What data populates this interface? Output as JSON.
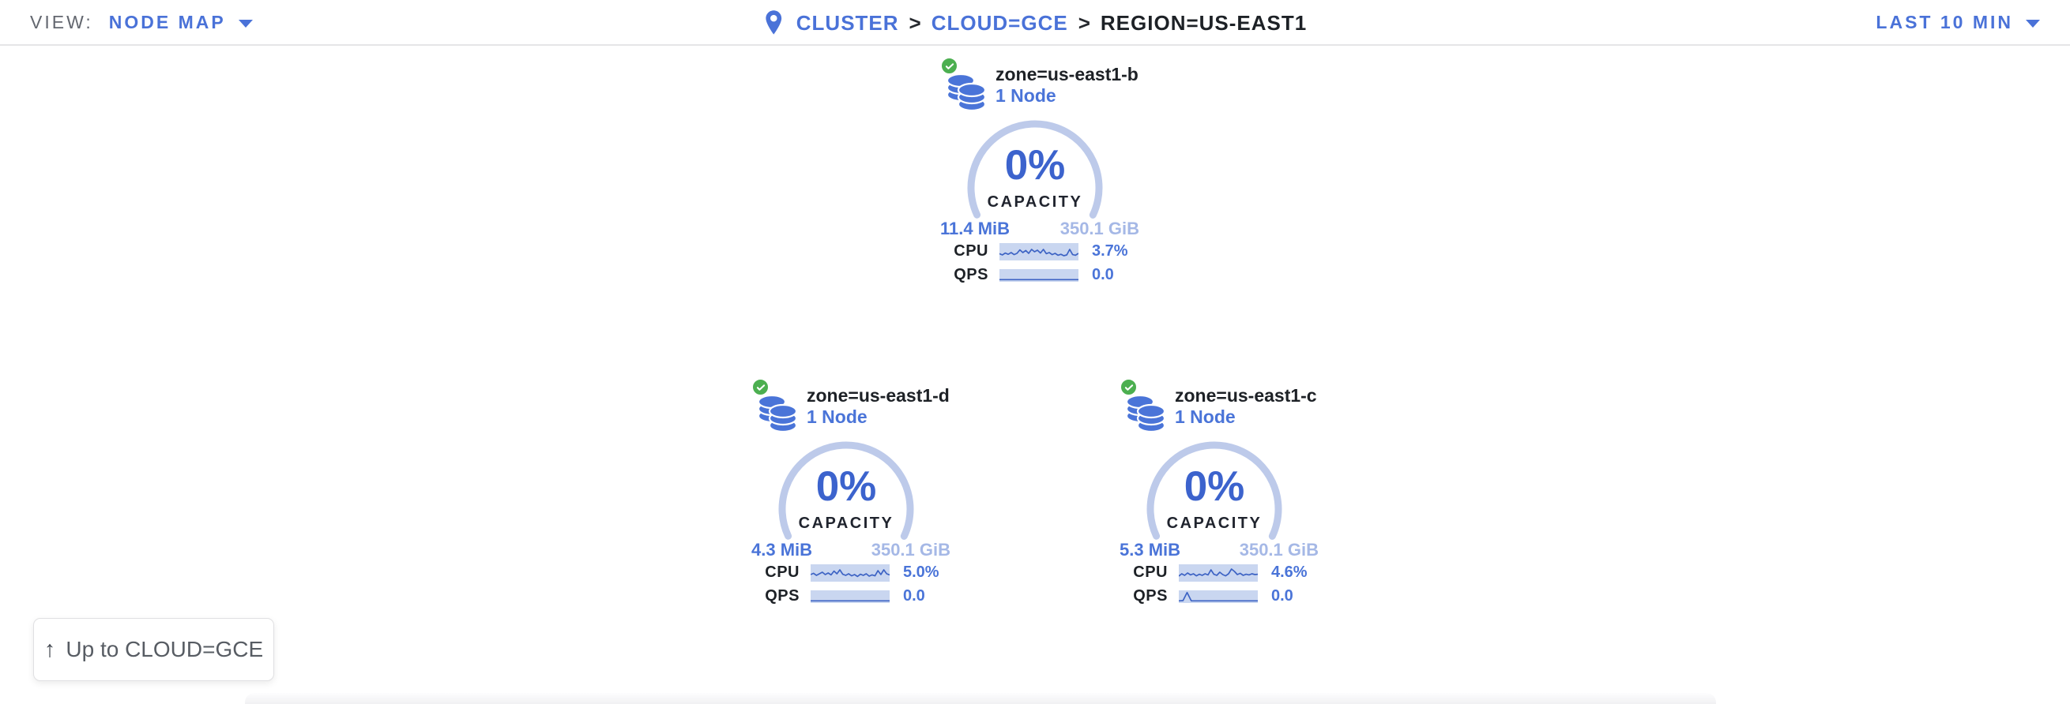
{
  "topbar": {
    "view_label": "VIEW:",
    "view_value": "NODE MAP",
    "separator": ">",
    "breadcrumb": [
      {
        "label": "CLUSTER"
      },
      {
        "label": "CLOUD=GCE"
      },
      {
        "label": "REGION=US-EAST1"
      }
    ],
    "time_range": "LAST 10 MIN"
  },
  "cards": [
    {
      "title": "zone=us-east1-b",
      "subtitle": "1 Node",
      "capacity_pct": "0%",
      "capacity_label": "CAPACITY",
      "used": "11.4 MiB",
      "total": "350.1 GiB",
      "cpu_label": "CPU",
      "cpu_value": "3.7%",
      "qps_label": "QPS",
      "qps_value": "0.0",
      "cpu_spark": [
        0.62,
        0.7,
        0.58,
        0.66,
        0.55,
        0.68,
        0.6,
        0.38,
        0.55,
        0.42,
        0.6,
        0.35,
        0.5,
        0.4,
        0.58,
        0.35,
        0.62,
        0.55,
        0.68,
        0.6,
        0.72,
        0.66,
        0.75,
        0.7,
        0.35,
        0.68,
        0.72,
        0.6
      ],
      "qps_spark": [
        0.88,
        0.88
      ]
    },
    {
      "title": "zone=us-east1-d",
      "subtitle": "1 Node",
      "capacity_pct": "0%",
      "capacity_label": "CAPACITY",
      "used": "4.3 MiB",
      "total": "350.1 GiB",
      "cpu_label": "CPU",
      "cpu_value": "5.0%",
      "qps_label": "QPS",
      "qps_value": "0.0",
      "cpu_spark": [
        0.6,
        0.52,
        0.65,
        0.55,
        0.45,
        0.6,
        0.5,
        0.62,
        0.38,
        0.55,
        0.3,
        0.58,
        0.65,
        0.55,
        0.68,
        0.6,
        0.72,
        0.58,
        0.65,
        0.55,
        0.7,
        0.62,
        0.68,
        0.35,
        0.6,
        0.3,
        0.55,
        0.62
      ],
      "qps_spark": [
        0.88,
        0.88
      ]
    },
    {
      "title": "zone=us-east1-c",
      "subtitle": "1 Node",
      "capacity_pct": "0%",
      "capacity_label": "CAPACITY",
      "used": "5.3 MiB",
      "total": "350.1 GiB",
      "cpu_label": "CPU",
      "cpu_value": "4.6%",
      "qps_label": "QPS",
      "qps_value": "0.0",
      "cpu_spark": [
        0.7,
        0.55,
        0.65,
        0.5,
        0.62,
        0.55,
        0.68,
        0.58,
        0.65,
        0.55,
        0.62,
        0.3,
        0.58,
        0.65,
        0.45,
        0.6,
        0.68,
        0.55,
        0.25,
        0.4,
        0.6,
        0.52,
        0.65,
        0.58,
        0.62,
        0.55,
        0.6,
        0.58
      ],
      "qps_spark": [
        0.88,
        0.86,
        0.12,
        0.88,
        0.88,
        0.88,
        0.88,
        0.88,
        0.88,
        0.88,
        0.88,
        0.88,
        0.88,
        0.88,
        0.88,
        0.88,
        0.88,
        0.88,
        0.88,
        0.88
      ]
    }
  ],
  "up_button": {
    "label": "Up to CLOUD=GCE"
  },
  "icons": {
    "breadcrumb_icon": "location-pin-icon",
    "zone_icon": "database-stack-icon",
    "health_icon": "check-circle-icon",
    "dropdown_icon": "chevron-down-icon",
    "up_icon": "arrow-up-icon"
  },
  "colors": {
    "accent_blue": "#4a72d8",
    "gauge_pct_blue": "#3c63cd",
    "arc_light_blue": "#bdcaea",
    "spark_bg": "#c9d6f0",
    "spark_line": "#3d63c4",
    "total_light_blue": "#a5b8e6",
    "healthy_green": "#4caf50",
    "dark_text": "#1d2126",
    "muted_gray": "#63676f"
  }
}
